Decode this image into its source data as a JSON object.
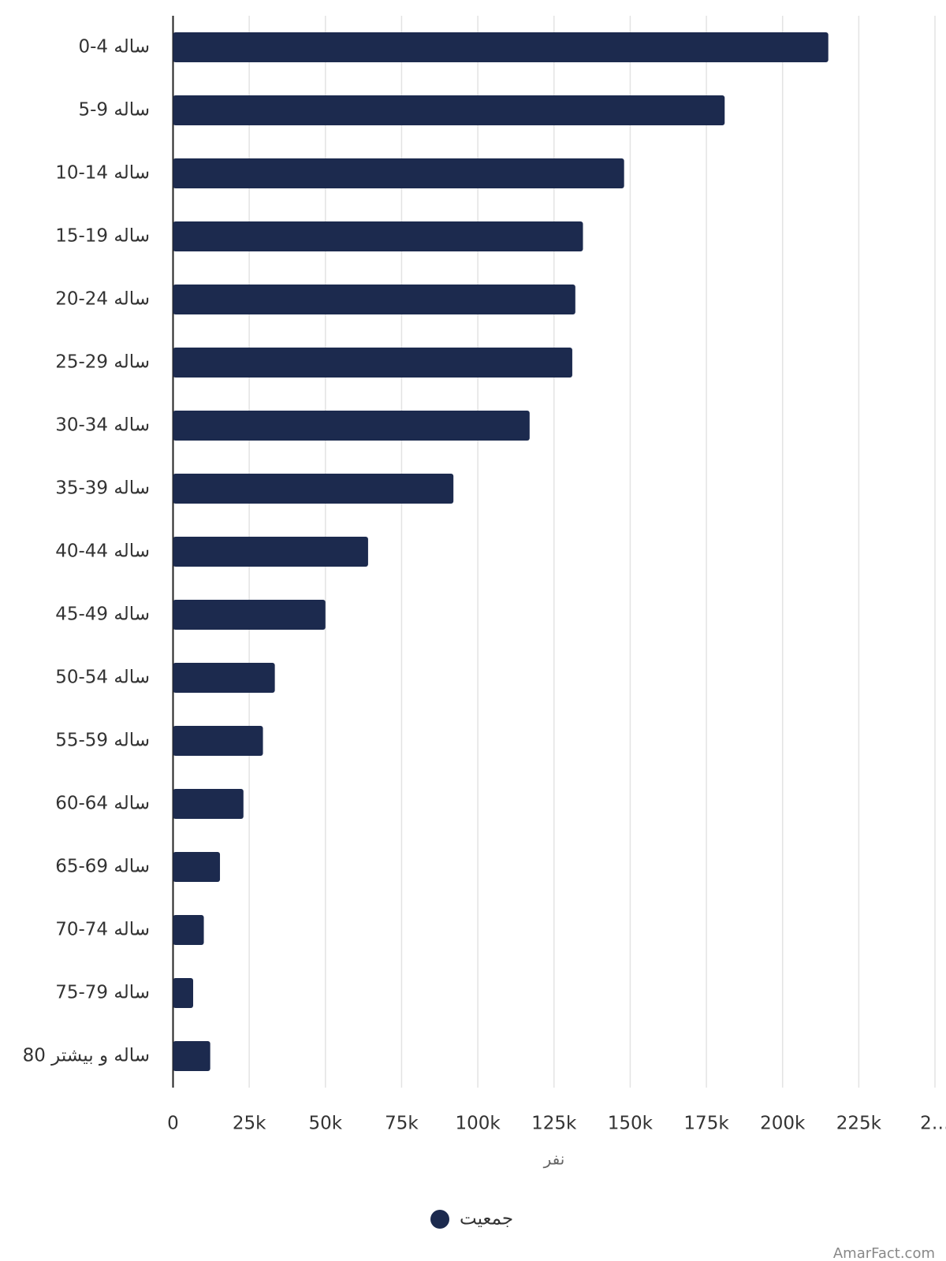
{
  "chart_data": {
    "type": "bar",
    "orientation": "horizontal",
    "categories": [
      "0-4 ساله",
      "5-9 ساله",
      "10-14 ساله",
      "15-19 ساله",
      "20-24 ساله",
      "25-29 ساله",
      "30-34 ساله",
      "35-39 ساله",
      "40-44 ساله",
      "45-49 ساله",
      "50-54 ساله",
      "55-59 ساله",
      "60-64 ساله",
      "65-69 ساله",
      "70-74 ساله",
      "75-79 ساله",
      "80 ساله و بیشتر"
    ],
    "series": [
      {
        "name": "جمعیت",
        "color": "#1c2a4e",
        "values": [
          215000,
          181000,
          148000,
          134500,
          132000,
          131000,
          117000,
          92000,
          64000,
          50000,
          33400,
          29500,
          23100,
          15400,
          10100,
          6600,
          12200
        ]
      }
    ],
    "xlabel": "نفر",
    "xlim": [
      0,
      250000
    ],
    "xticks": [
      0,
      {
        "value": 25000,
        "label": "25k"
      },
      {
        "value": 50000,
        "label": "50k"
      },
      {
        "value": 75000,
        "label": "75k"
      },
      {
        "value": 100000,
        "label": "100k"
      },
      {
        "value": 125000,
        "label": "125k"
      },
      {
        "value": 150000,
        "label": "150k"
      },
      {
        "value": 175000,
        "label": "175k"
      },
      {
        "value": 200000,
        "label": "200k"
      },
      {
        "value": 225000,
        "label": "225k"
      },
      {
        "value": 250000,
        "label": "2…"
      }
    ],
    "grid": true,
    "legend": "bottom",
    "watermark": "AmarFact.com"
  }
}
